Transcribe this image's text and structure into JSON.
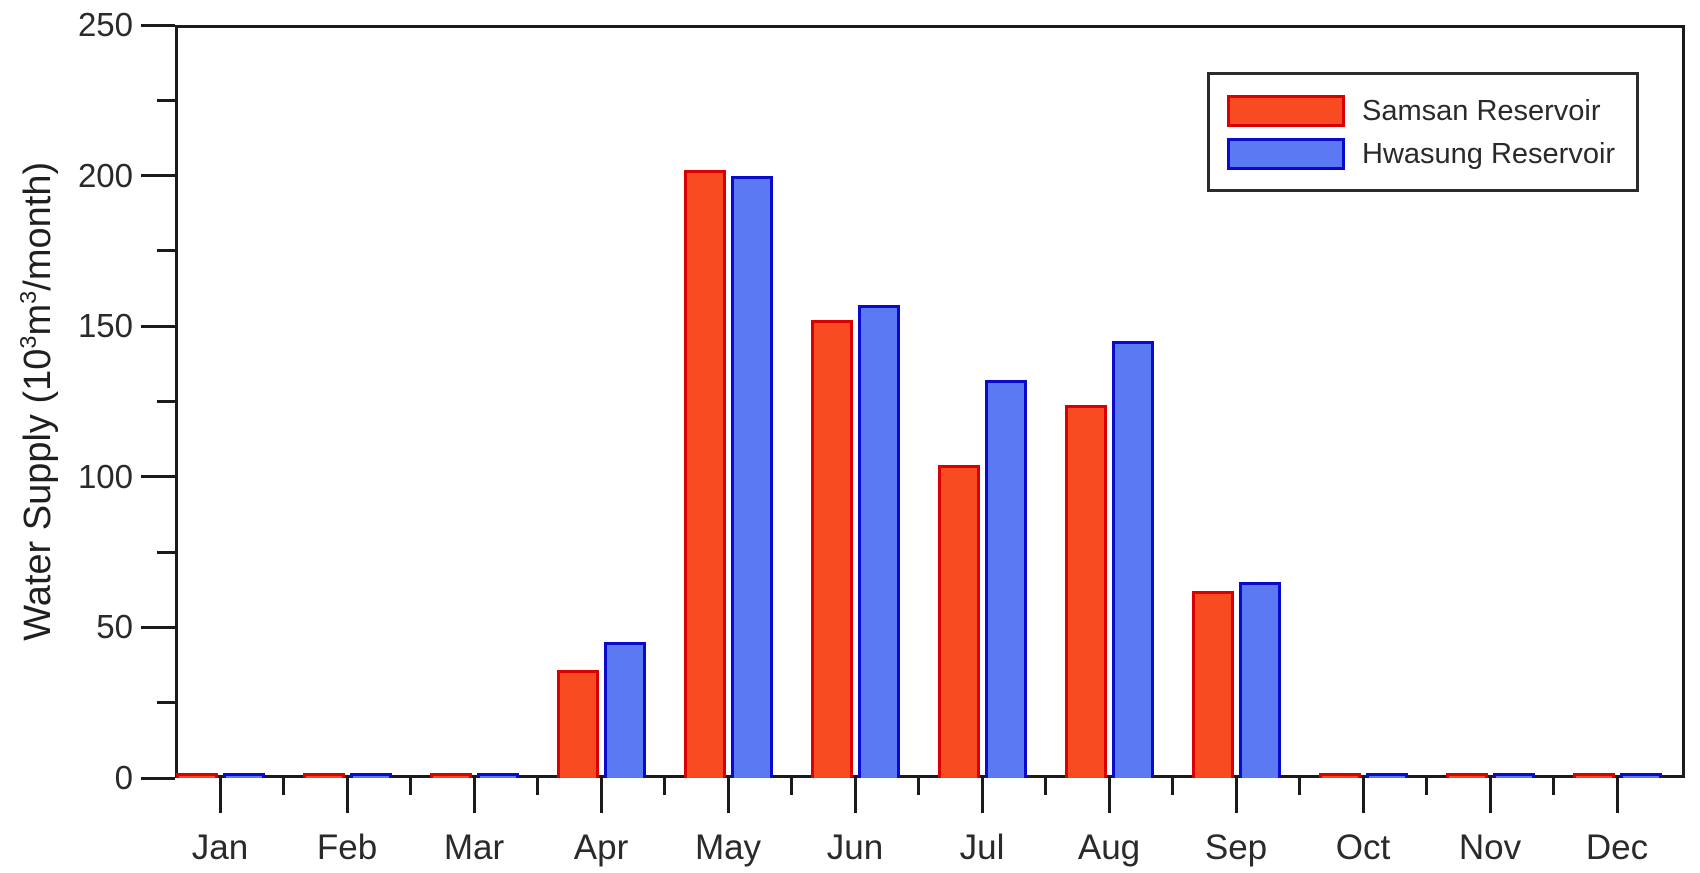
{
  "chart_data": {
    "type": "bar",
    "title": "",
    "xlabel": "",
    "ylabel": "Water Supply (10³m³/month)",
    "ylabel_parts": [
      "Water Supply (10",
      "3",
      "m",
      "3",
      "/month)"
    ],
    "categories": [
      "Jan",
      "Feb",
      "Mar",
      "Apr",
      "May",
      "Jun",
      "Jul",
      "Aug",
      "Sep",
      "Oct",
      "Nov",
      "Dec"
    ],
    "series": [
      {
        "name": "Samsan Reservoir",
        "fill_color": "#f84b21",
        "border_color": "#d90000",
        "values": [
          1,
          1,
          1,
          36,
          202,
          152,
          104,
          124,
          62,
          1,
          1,
          1
        ]
      },
      {
        "name": "Hwasung Reservoir",
        "fill_color": "#5b79f2",
        "border_color": "#0a0acd",
        "values": [
          1,
          1,
          1,
          45,
          200,
          157,
          132,
          145,
          65,
          1,
          1,
          1
        ]
      }
    ],
    "ylim": [
      0,
      250
    ],
    "yticks": [
      0,
      50,
      100,
      150,
      200,
      250
    ],
    "ytick_step": 50,
    "yminor_step": 25,
    "grid": false,
    "legend_position": "top-right",
    "axis_color": "#1b1b1b",
    "text_color": "#2a2a2a"
  }
}
